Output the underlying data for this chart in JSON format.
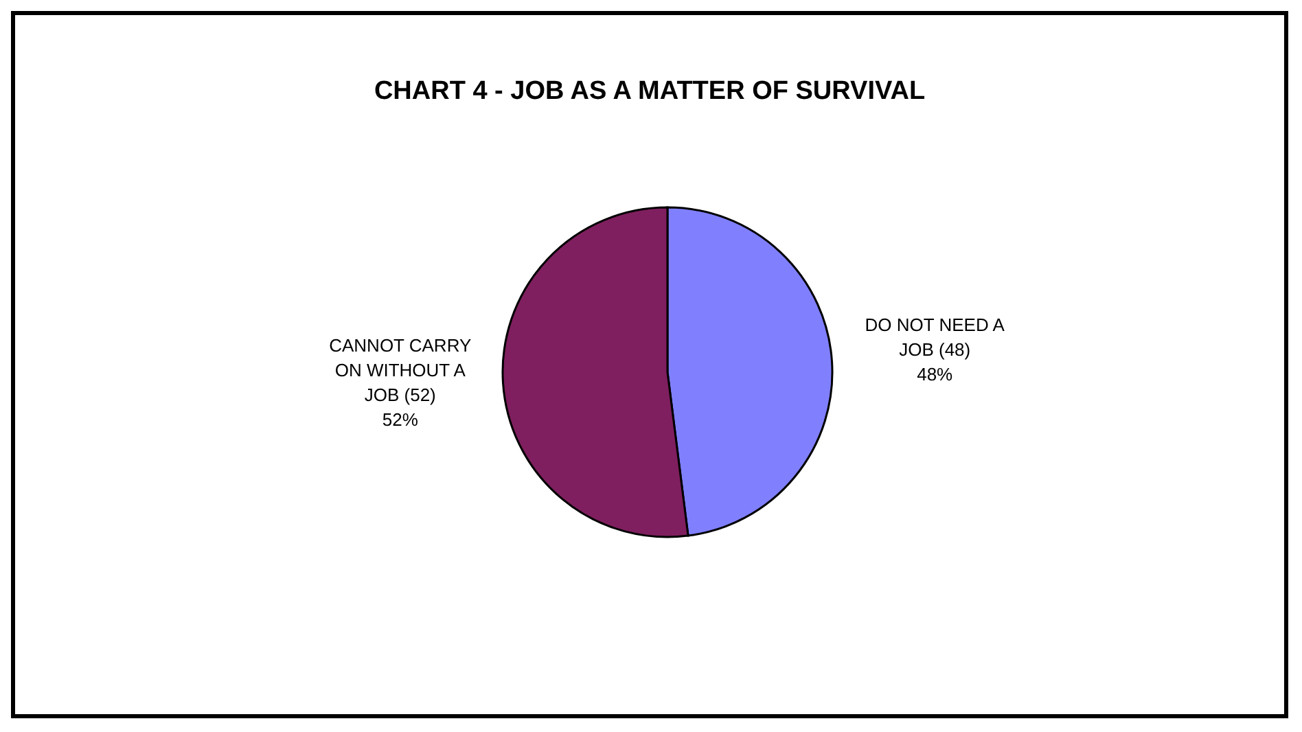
{
  "chart_data": {
    "type": "pie",
    "title": "CHART 4 - JOB AS A MATTER OF SURVIVAL",
    "categories": [
      "DO NOT NEED A JOB (48)",
      "CANNOT CARRY ON WITHOUT A JOB (52)"
    ],
    "values": [
      48,
      52
    ],
    "colors": [
      "#8080ff",
      "#7f1f5f"
    ],
    "value_labels": [
      "48%",
      "52%"
    ]
  }
}
